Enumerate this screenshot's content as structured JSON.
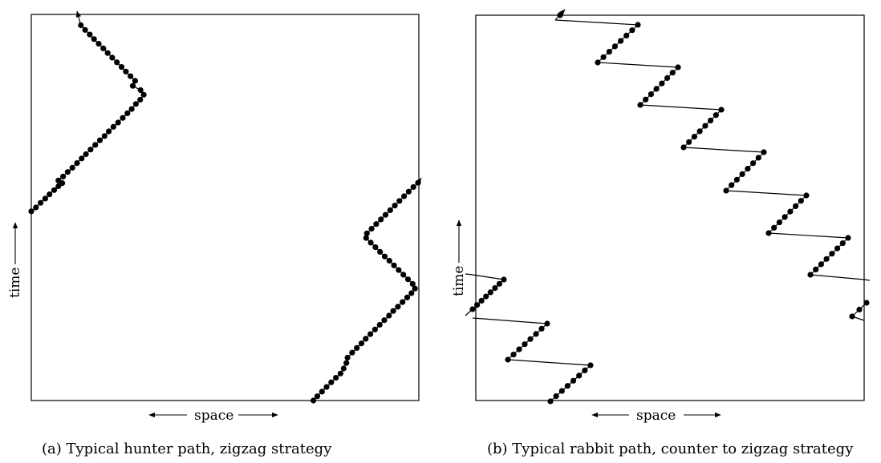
{
  "panels": [
    {
      "id": "a",
      "caption": "(a) Typical hunter path, zigzag strategy",
      "xlabel": "space",
      "ylabel": "time",
      "paths": [
        {
          "kind": "hunter-upper",
          "points": [
            [
              0.0,
              0.51
            ],
            [
              0.012,
              0.5
            ],
            [
              0.024,
              0.488
            ],
            [
              0.036,
              0.477
            ],
            [
              0.047,
              0.466
            ],
            [
              0.059,
              0.455
            ],
            [
              0.07,
              0.445
            ],
            [
              0.08,
              0.437
            ],
            [
              0.07,
              0.43
            ],
            [
              0.082,
              0.42
            ],
            [
              0.094,
              0.408
            ],
            [
              0.106,
              0.397
            ],
            [
              0.118,
              0.385
            ],
            [
              0.13,
              0.373
            ],
            [
              0.141,
              0.362
            ],
            [
              0.153,
              0.35
            ],
            [
              0.165,
              0.338
            ],
            [
              0.177,
              0.326
            ],
            [
              0.189,
              0.315
            ],
            [
              0.2,
              0.303
            ],
            [
              0.212,
              0.291
            ],
            [
              0.224,
              0.28
            ],
            [
              0.236,
              0.268
            ],
            [
              0.248,
              0.256
            ],
            [
              0.259,
              0.245
            ],
            [
              0.27,
              0.232
            ],
            [
              0.281,
              0.221
            ],
            [
              0.29,
              0.208
            ],
            [
              0.282,
              0.196
            ],
            [
              0.262,
              0.185
            ],
            [
              0.268,
              0.172
            ],
            [
              0.256,
              0.16
            ],
            [
              0.244,
              0.148
            ],
            [
              0.233,
              0.136
            ],
            [
              0.221,
              0.124
            ],
            [
              0.209,
              0.112
            ],
            [
              0.197,
              0.1
            ],
            [
              0.186,
              0.088
            ],
            [
              0.174,
              0.076
            ],
            [
              0.162,
              0.064
            ],
            [
              0.151,
              0.052
            ],
            [
              0.139,
              0.04
            ],
            [
              0.128,
              0.028
            ],
            [
              0.118,
              -0.008
            ]
          ],
          "arrow": "end"
        },
        {
          "kind": "hunter-lower",
          "points": [
            [
              0.728,
              1.0
            ],
            [
              0.738,
              0.989
            ],
            [
              0.75,
              0.977
            ],
            [
              0.762,
              0.965
            ],
            [
              0.774,
              0.953
            ],
            [
              0.786,
              0.941
            ],
            [
              0.798,
              0.93
            ],
            [
              0.806,
              0.917
            ],
            [
              0.813,
              0.903
            ],
            [
              0.816,
              0.889
            ],
            [
              0.828,
              0.876
            ],
            [
              0.84,
              0.864
            ],
            [
              0.852,
              0.852
            ],
            [
              0.863,
              0.84
            ],
            [
              0.875,
              0.828
            ],
            [
              0.887,
              0.816
            ],
            [
              0.899,
              0.804
            ],
            [
              0.911,
              0.792
            ],
            [
              0.923,
              0.78
            ],
            [
              0.934,
              0.768
            ],
            [
              0.946,
              0.757
            ],
            [
              0.958,
              0.745
            ],
            [
              0.97,
              0.733
            ],
            [
              0.981,
              0.722
            ],
            [
              0.99,
              0.71
            ],
            [
              0.984,
              0.698
            ],
            [
              0.972,
              0.686
            ],
            [
              0.96,
              0.674
            ],
            [
              0.948,
              0.662
            ],
            [
              0.936,
              0.65
            ],
            [
              0.924,
              0.638
            ],
            [
              0.912,
              0.627
            ],
            [
              0.9,
              0.615
            ],
            [
              0.888,
              0.603
            ],
            [
              0.876,
              0.591
            ],
            [
              0.864,
              0.579
            ],
            [
              0.866,
              0.567
            ],
            [
              0.878,
              0.555
            ],
            [
              0.89,
              0.543
            ],
            [
              0.902,
              0.531
            ],
            [
              0.914,
              0.519
            ],
            [
              0.926,
              0.507
            ],
            [
              0.938,
              0.495
            ],
            [
              0.95,
              0.483
            ],
            [
              0.962,
              0.471
            ],
            [
              0.974,
              0.459
            ],
            [
              0.986,
              0.447
            ],
            [
              0.998,
              0.436
            ],
            [
              1.006,
              0.424
            ]
          ],
          "arrow": "end"
        }
      ]
    },
    {
      "id": "b",
      "caption": "(b) Typical rabbit path, counter to zigzag strategy",
      "xlabel": "space",
      "ylabel": "time",
      "paths": []
    }
  ]
}
